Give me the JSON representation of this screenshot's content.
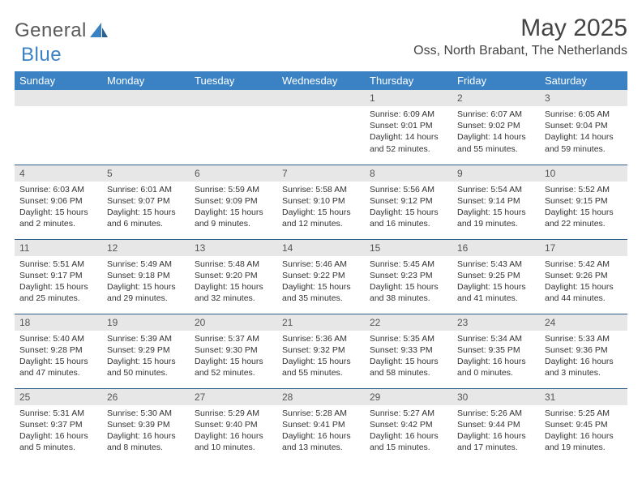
{
  "logo": {
    "text1": "General",
    "text2": "Blue"
  },
  "title": "May 2025",
  "location": "Oss, North Brabant, The Netherlands",
  "colors": {
    "header_bg": "#3b82c4",
    "header_text": "#ffffff",
    "daynum_bg": "#e7e7e7",
    "border": "#2f5f8a",
    "body_text": "#333333"
  },
  "dayHeaders": [
    "Sunday",
    "Monday",
    "Tuesday",
    "Wednesday",
    "Thursday",
    "Friday",
    "Saturday"
  ],
  "weeks": [
    [
      null,
      null,
      null,
      null,
      {
        "n": "1",
        "sunrise": "6:09 AM",
        "sunset": "9:01 PM",
        "dl1": "14 hours",
        "dl2": "and 52 minutes."
      },
      {
        "n": "2",
        "sunrise": "6:07 AM",
        "sunset": "9:02 PM",
        "dl1": "14 hours",
        "dl2": "and 55 minutes."
      },
      {
        "n": "3",
        "sunrise": "6:05 AM",
        "sunset": "9:04 PM",
        "dl1": "14 hours",
        "dl2": "and 59 minutes."
      }
    ],
    [
      {
        "n": "4",
        "sunrise": "6:03 AM",
        "sunset": "9:06 PM",
        "dl1": "15 hours",
        "dl2": "and 2 minutes."
      },
      {
        "n": "5",
        "sunrise": "6:01 AM",
        "sunset": "9:07 PM",
        "dl1": "15 hours",
        "dl2": "and 6 minutes."
      },
      {
        "n": "6",
        "sunrise": "5:59 AM",
        "sunset": "9:09 PM",
        "dl1": "15 hours",
        "dl2": "and 9 minutes."
      },
      {
        "n": "7",
        "sunrise": "5:58 AM",
        "sunset": "9:10 PM",
        "dl1": "15 hours",
        "dl2": "and 12 minutes."
      },
      {
        "n": "8",
        "sunrise": "5:56 AM",
        "sunset": "9:12 PM",
        "dl1": "15 hours",
        "dl2": "and 16 minutes."
      },
      {
        "n": "9",
        "sunrise": "5:54 AM",
        "sunset": "9:14 PM",
        "dl1": "15 hours",
        "dl2": "and 19 minutes."
      },
      {
        "n": "10",
        "sunrise": "5:52 AM",
        "sunset": "9:15 PM",
        "dl1": "15 hours",
        "dl2": "and 22 minutes."
      }
    ],
    [
      {
        "n": "11",
        "sunrise": "5:51 AM",
        "sunset": "9:17 PM",
        "dl1": "15 hours",
        "dl2": "and 25 minutes."
      },
      {
        "n": "12",
        "sunrise": "5:49 AM",
        "sunset": "9:18 PM",
        "dl1": "15 hours",
        "dl2": "and 29 minutes."
      },
      {
        "n": "13",
        "sunrise": "5:48 AM",
        "sunset": "9:20 PM",
        "dl1": "15 hours",
        "dl2": "and 32 minutes."
      },
      {
        "n": "14",
        "sunrise": "5:46 AM",
        "sunset": "9:22 PM",
        "dl1": "15 hours",
        "dl2": "and 35 minutes."
      },
      {
        "n": "15",
        "sunrise": "5:45 AM",
        "sunset": "9:23 PM",
        "dl1": "15 hours",
        "dl2": "and 38 minutes."
      },
      {
        "n": "16",
        "sunrise": "5:43 AM",
        "sunset": "9:25 PM",
        "dl1": "15 hours",
        "dl2": "and 41 minutes."
      },
      {
        "n": "17",
        "sunrise": "5:42 AM",
        "sunset": "9:26 PM",
        "dl1": "15 hours",
        "dl2": "and 44 minutes."
      }
    ],
    [
      {
        "n": "18",
        "sunrise": "5:40 AM",
        "sunset": "9:28 PM",
        "dl1": "15 hours",
        "dl2": "and 47 minutes."
      },
      {
        "n": "19",
        "sunrise": "5:39 AM",
        "sunset": "9:29 PM",
        "dl1": "15 hours",
        "dl2": "and 50 minutes."
      },
      {
        "n": "20",
        "sunrise": "5:37 AM",
        "sunset": "9:30 PM",
        "dl1": "15 hours",
        "dl2": "and 52 minutes."
      },
      {
        "n": "21",
        "sunrise": "5:36 AM",
        "sunset": "9:32 PM",
        "dl1": "15 hours",
        "dl2": "and 55 minutes."
      },
      {
        "n": "22",
        "sunrise": "5:35 AM",
        "sunset": "9:33 PM",
        "dl1": "15 hours",
        "dl2": "and 58 minutes."
      },
      {
        "n": "23",
        "sunrise": "5:34 AM",
        "sunset": "9:35 PM",
        "dl1": "16 hours",
        "dl2": "and 0 minutes."
      },
      {
        "n": "24",
        "sunrise": "5:33 AM",
        "sunset": "9:36 PM",
        "dl1": "16 hours",
        "dl2": "and 3 minutes."
      }
    ],
    [
      {
        "n": "25",
        "sunrise": "5:31 AM",
        "sunset": "9:37 PM",
        "dl1": "16 hours",
        "dl2": "and 5 minutes."
      },
      {
        "n": "26",
        "sunrise": "5:30 AM",
        "sunset": "9:39 PM",
        "dl1": "16 hours",
        "dl2": "and 8 minutes."
      },
      {
        "n": "27",
        "sunrise": "5:29 AM",
        "sunset": "9:40 PM",
        "dl1": "16 hours",
        "dl2": "and 10 minutes."
      },
      {
        "n": "28",
        "sunrise": "5:28 AM",
        "sunset": "9:41 PM",
        "dl1": "16 hours",
        "dl2": "and 13 minutes."
      },
      {
        "n": "29",
        "sunrise": "5:27 AM",
        "sunset": "9:42 PM",
        "dl1": "16 hours",
        "dl2": "and 15 minutes."
      },
      {
        "n": "30",
        "sunrise": "5:26 AM",
        "sunset": "9:44 PM",
        "dl1": "16 hours",
        "dl2": "and 17 minutes."
      },
      {
        "n": "31",
        "sunrise": "5:25 AM",
        "sunset": "9:45 PM",
        "dl1": "16 hours",
        "dl2": "and 19 minutes."
      }
    ]
  ],
  "labels": {
    "sunrise": "Sunrise: ",
    "sunset": "Sunset: ",
    "daylight": "Daylight: "
  }
}
